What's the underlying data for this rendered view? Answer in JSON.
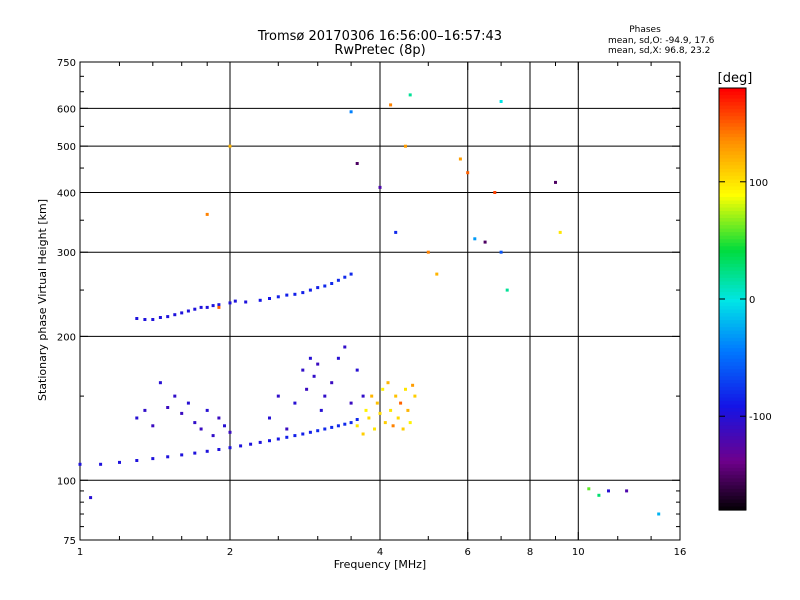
{
  "chart_data": {
    "type": "scatter",
    "title": "Tromsø 20170306 16:56:00–16:57:43",
    "subtitle": "RwPretec (8p)",
    "xlabel": "Frequency [MHz]",
    "ylabel": "Stationary phase Virtual Height [km]",
    "x_scale": "log",
    "y_scale": "log",
    "xlim": [
      1,
      16
    ],
    "ylim": [
      75,
      750
    ],
    "x_ticks": [
      1,
      2,
      4,
      6,
      8,
      10,
      16
    ],
    "x_tick_labels": [
      "1",
      "2",
      "4",
      "6",
      "8",
      "10",
      "16"
    ],
    "y_ticks": [
      75,
      100,
      200,
      300,
      400,
      500,
      600,
      750
    ],
    "y_tick_labels": [
      "75",
      "100",
      "200",
      "300",
      "400",
      "500",
      "600",
      "750"
    ],
    "x_gridlines": [
      2,
      4,
      6,
      8,
      10
    ],
    "y_gridlines": [
      100,
      200,
      300,
      400,
      500,
      600
    ],
    "stats": {
      "heading": "Phases",
      "line_o": "mean, sd,O: -94.9, 17.6",
      "line_x": "mean, sd,X:  96.8, 23.2"
    },
    "colorbar": {
      "label": "[deg]",
      "min": -180,
      "max": 180,
      "ticks": [
        100,
        0,
        -100
      ],
      "tick_labels": [
        "100",
        "0",
        "-100"
      ]
    },
    "series": [
      {
        "comment_trace": "O-mode bottom trace",
        "x": [
          1.0,
          1.1,
          1.2,
          1.3,
          1.4,
          1.5,
          1.6,
          1.7,
          1.8,
          1.9,
          2.0,
          2.1,
          2.2,
          2.3,
          2.4,
          2.5,
          2.6,
          2.7,
          2.8,
          2.9,
          3.0,
          3.1,
          3.2,
          3.3,
          3.4,
          3.5,
          3.6
        ],
        "y": [
          108,
          108,
          109,
          110,
          111,
          112,
          113,
          114,
          115,
          116,
          117,
          118,
          119,
          120,
          121,
          122,
          123,
          124,
          125,
          126,
          127,
          128,
          129,
          130,
          131,
          132,
          134
        ],
        "phase": [
          -95,
          -95,
          -95,
          -95,
          -95,
          -95,
          -95,
          -95,
          -95,
          -95,
          -95,
          -95,
          -95,
          -95,
          -90,
          -90,
          -85,
          -85,
          -85,
          -85,
          -80,
          -80,
          -80,
          -80,
          -80,
          -80,
          -80
        ]
      },
      {
        "comment_trace": "F-region trace",
        "x": [
          1.3,
          1.35,
          1.4,
          1.45,
          1.5,
          1.55,
          1.6,
          1.65,
          1.7,
          1.75,
          1.8,
          1.85,
          1.9,
          2.0,
          2.05,
          2.15,
          2.3,
          2.4,
          2.5,
          2.6,
          2.7,
          2.8,
          2.9,
          3.0,
          3.1,
          3.2,
          3.3,
          3.4,
          3.5
        ],
        "y": [
          218,
          217,
          217,
          219,
          220,
          222,
          224,
          226,
          228,
          230,
          230,
          232,
          233,
          235,
          237,
          236,
          238,
          240,
          242,
          244,
          245,
          247,
          250,
          253,
          255,
          258,
          262,
          266,
          270
        ],
        "phase": [
          -95,
          -95,
          -95,
          -95,
          -95,
          -95,
          -95,
          -95,
          -95,
          -95,
          -95,
          -95,
          -95,
          -95,
          -95,
          -95,
          -90,
          -90,
          -85,
          -85,
          -85,
          -85,
          -85,
          -85,
          -80,
          -80,
          -80,
          -80,
          -80
        ]
      },
      {
        "comment_trace": "spread echoes",
        "x": [
          1.3,
          1.35,
          1.4,
          1.45,
          1.5,
          1.55,
          1.6,
          1.65,
          1.7,
          1.75,
          1.8,
          1.85,
          1.9,
          1.95,
          2.0,
          2.4,
          2.5,
          2.6,
          2.7,
          2.8,
          2.85,
          2.9,
          2.95,
          3.0,
          3.05,
          3.1,
          3.2,
          3.3,
          3.4,
          3.5,
          3.6,
          3.7
        ],
        "y": [
          135,
          140,
          130,
          160,
          142,
          150,
          138,
          145,
          132,
          128,
          140,
          124,
          135,
          130,
          126,
          135,
          150,
          128,
          145,
          170,
          155,
          180,
          165,
          175,
          140,
          150,
          160,
          180,
          190,
          145,
          170,
          150
        ],
        "phase": [
          -100,
          -105,
          -110,
          -100,
          -110,
          -105,
          -110,
          -100,
          -105,
          -110,
          -100,
          -105,
          -110,
          -100,
          -110,
          -100,
          -105,
          -110,
          -100,
          -105,
          -110,
          -100,
          -105,
          -110,
          -100,
          -105,
          -110,
          -100,
          -105,
          -110,
          -100,
          -105
        ]
      },
      {
        "comment_trace": "X-mode echoes",
        "x": [
          3.6,
          3.7,
          3.75,
          3.8,
          3.85,
          3.9,
          3.95,
          4.0,
          4.05,
          4.1,
          4.15,
          4.2,
          4.25,
          4.3,
          4.35,
          4.4,
          4.45,
          4.5,
          4.55,
          4.6,
          4.65,
          4.7
        ],
        "y": [
          130,
          125,
          140,
          135,
          150,
          128,
          145,
          138,
          155,
          132,
          160,
          140,
          130,
          150,
          135,
          145,
          128,
          155,
          140,
          132,
          158,
          150
        ],
        "phase": [
          100,
          110,
          95,
          105,
          120,
          100,
          115,
          105,
          95,
          110,
          120,
          100,
          140,
          115,
          105,
          150,
          110,
          100,
          120,
          95,
          130,
          110
        ]
      },
      {
        "comment_trace": "scattered echoes",
        "x": [
          1.05,
          1.8,
          1.9,
          2.0,
          3.5,
          3.6,
          4.0,
          4.2,
          4.3,
          4.5,
          4.6,
          5.0,
          5.2,
          5.8,
          6.0,
          6.2,
          6.5,
          6.8,
          7.0,
          7.0,
          7.2,
          9.0,
          9.2,
          10.5,
          11.0,
          11.5,
          12.5,
          14.5
        ],
        "y": [
          92,
          360,
          230,
          500,
          590,
          460,
          410,
          610,
          330,
          500,
          640,
          300,
          270,
          470,
          440,
          320,
          315,
          400,
          620,
          300,
          250,
          420,
          330,
          96,
          93,
          95,
          95,
          85
        ],
        "phase": [
          -100,
          140,
          150,
          120,
          -40,
          -150,
          -120,
          140,
          -80,
          130,
          20,
          140,
          120,
          130,
          150,
          -30,
          -150,
          160,
          0,
          -60,
          20,
          -150,
          100,
          60,
          30,
          -100,
          -120,
          -20
        ]
      }
    ]
  }
}
